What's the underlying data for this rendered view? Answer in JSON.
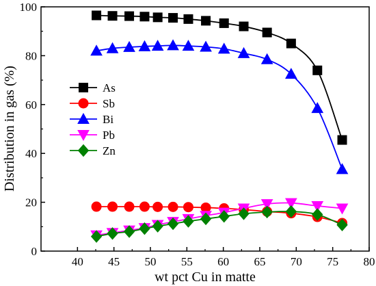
{
  "chart_data": {
    "type": "line",
    "xlabel": "wt pct Cu in matte",
    "ylabel": "Distribution in gas (%)",
    "xlim": [
      35,
      80
    ],
    "ylim": [
      0,
      100
    ],
    "xticks": [
      40,
      45,
      50,
      55,
      60,
      65,
      70,
      75,
      80
    ],
    "yticks": [
      0,
      20,
      40,
      60,
      80,
      100
    ],
    "grid": false,
    "legend_position": "middle-left",
    "x": [
      42.6,
      44.8,
      47.1,
      49.2,
      51.0,
      53.1,
      55.2,
      57.6,
      60.1,
      62.8,
      66.0,
      69.3,
      72.9,
      76.3
    ],
    "series": [
      {
        "name": "As",
        "marker": "square",
        "color": "#000000",
        "values": [
          96.5,
          96.3,
          96.2,
          96.0,
          95.7,
          95.5,
          95.0,
          94.3,
          93.3,
          92.0,
          89.5,
          85.0,
          74.0,
          45.5
        ]
      },
      {
        "name": "Sb",
        "marker": "circle",
        "color": "#ff0000",
        "values": [
          18.2,
          18.2,
          18.2,
          18.2,
          18.1,
          18.1,
          18.0,
          17.8,
          17.5,
          17.0,
          16.2,
          15.5,
          14.0,
          11.5
        ]
      },
      {
        "name": "Bi",
        "marker": "triangle-up",
        "color": "#0000ff",
        "values": [
          82.0,
          83.0,
          83.5,
          83.8,
          84.0,
          84.2,
          84.0,
          83.6,
          82.8,
          81.0,
          78.5,
          72.5,
          58.5,
          33.5
        ]
      },
      {
        "name": "Pb",
        "marker": "triangle-down",
        "color": "#ff00ff",
        "values": [
          6.5,
          7.5,
          8.5,
          9.5,
          10.8,
          12.0,
          13.2,
          14.5,
          15.8,
          17.5,
          19.3,
          19.7,
          18.5,
          17.5
        ]
      },
      {
        "name": "Zn",
        "marker": "diamond",
        "color": "#008000",
        "values": [
          6.0,
          7.2,
          8.0,
          9.2,
          10.2,
          11.2,
          12.2,
          13.2,
          14.2,
          15.3,
          16.0,
          16.2,
          15.0,
          10.7
        ]
      }
    ]
  }
}
